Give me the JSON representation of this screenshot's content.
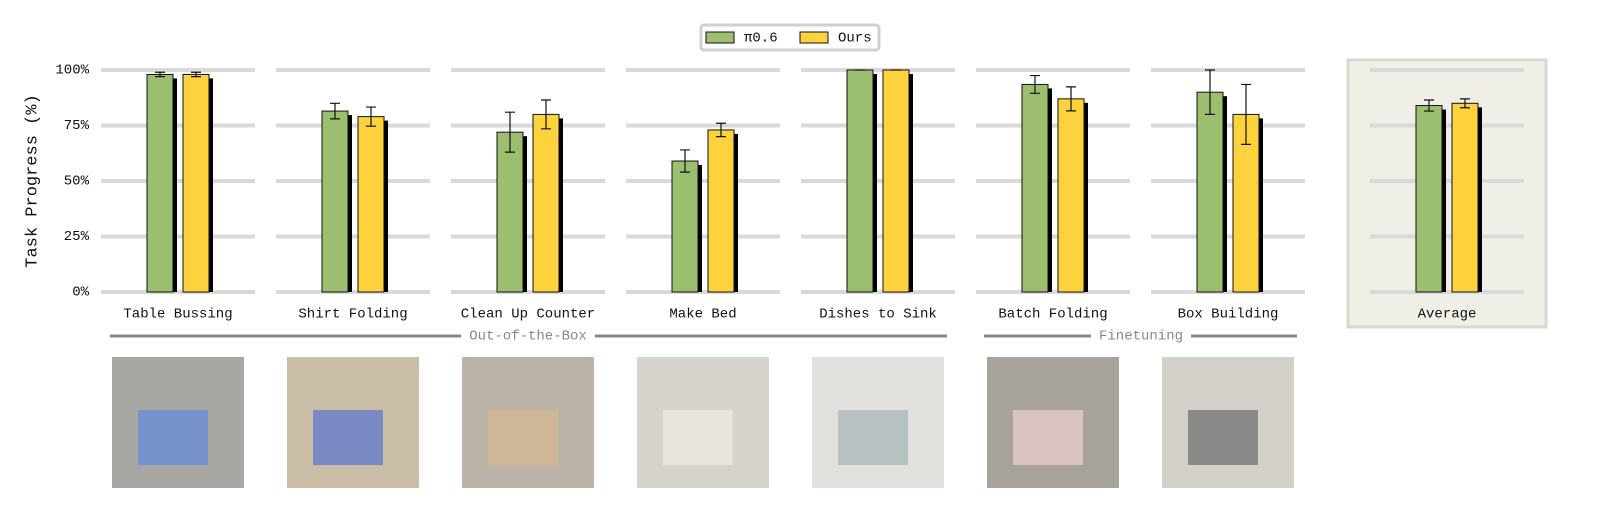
{
  "chart_data": {
    "type": "bar",
    "ylabel": "Task Progress (%)",
    "categories": [
      "Table Bussing",
      "Shirt Folding",
      "Clean Up Counter",
      "Make Bed",
      "Dishes to Sink",
      "Batch Folding",
      "Box Building",
      "Average"
    ],
    "series": [
      {
        "name": "π0.6",
        "color": "#9bbf6e",
        "values": [
          98,
          81.5,
          72,
          59,
          100,
          93.5,
          90,
          84
        ],
        "errors": [
          1,
          3.5,
          9,
          5,
          0,
          4,
          10,
          2.5
        ]
      },
      {
        "name": "Ours",
        "color": "#fdd23d",
        "values": [
          98,
          79,
          80,
          73,
          100,
          87,
          80,
          85
        ],
        "errors": [
          1,
          4.3,
          6.5,
          3,
          0,
          5.4,
          13.5,
          2
        ]
      }
    ],
    "group_labels": [
      "Out-of-the-Box",
      "Finetuning"
    ],
    "ylim": [
      0,
      100
    ],
    "yticks": [
      {
        "value": 0,
        "label": "0%"
      },
      {
        "value": 25,
        "label": "25%"
      },
      {
        "value": 50,
        "label": "50%"
      },
      {
        "value": 75,
        "label": "75%"
      },
      {
        "value": 100,
        "label": "100%"
      }
    ],
    "grid": true
  }
}
